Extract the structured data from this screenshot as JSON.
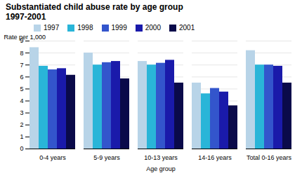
{
  "chart_data": {
    "type": "bar",
    "title": "Substantiated child abuse rate by age group",
    "subtitle": "1997-2001",
    "xlabel": "Age group",
    "ylabel": "Rate per 1,000",
    "categories": [
      "0-4 years",
      "5-9 years",
      "10-13 years",
      "14-16 years",
      "Total 0-16 years"
    ],
    "series": [
      {
        "name": "1997",
        "color": "#b8d4e8",
        "values": [
          8.45,
          8.0,
          7.3,
          5.5,
          8.2
        ]
      },
      {
        "name": "1998",
        "color": "#29b5d8",
        "values": [
          6.9,
          7.0,
          7.0,
          4.6,
          7.0
        ]
      },
      {
        "name": "1999",
        "color": "#3355cc",
        "values": [
          6.6,
          7.2,
          7.15,
          5.05,
          7.0
        ]
      },
      {
        "name": "2000",
        "color": "#1a1aaa",
        "values": [
          6.7,
          7.3,
          7.4,
          4.75,
          6.9
        ]
      },
      {
        "name": "2001",
        "color": "#0a0a4a",
        "values": [
          6.15,
          5.85,
          5.5,
          3.6,
          5.5
        ]
      }
    ],
    "ylim": [
      0,
      9
    ],
    "yticks": [
      0,
      1,
      2,
      3,
      4,
      5,
      6,
      7,
      8,
      9
    ],
    "grid": true,
    "legend": "top"
  }
}
